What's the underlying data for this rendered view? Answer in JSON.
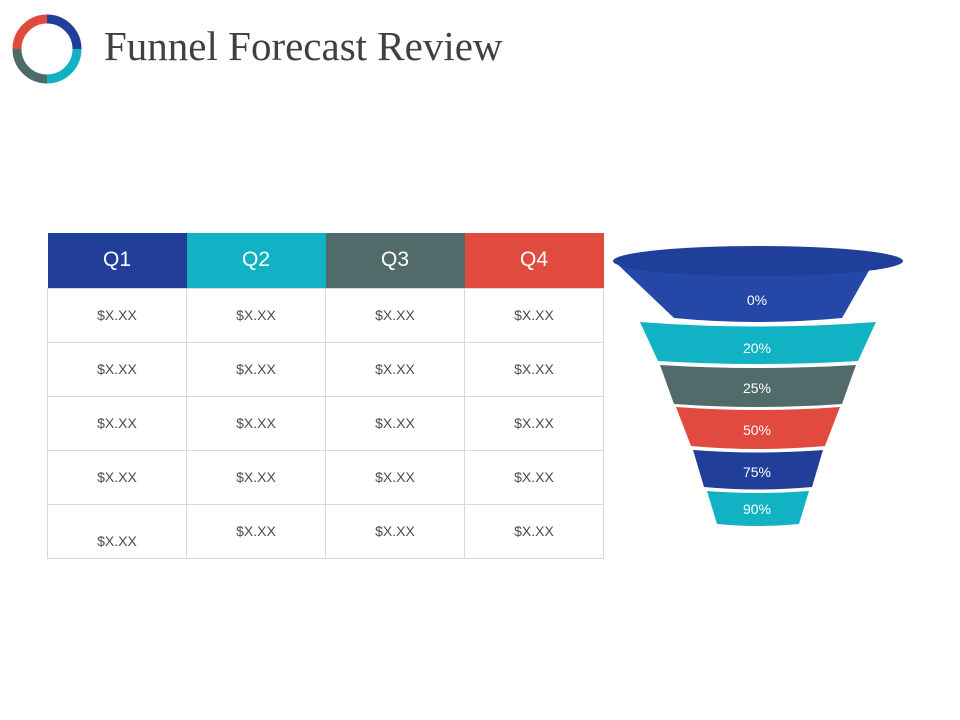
{
  "slide": {
    "title": "Funnel Forecast Review",
    "logo_icon": "donut-ring-icon",
    "logo_colors": [
      "#e04a3f",
      "#213f99",
      "#0fb1c2",
      "#4e6b6b"
    ]
  },
  "table": {
    "headers": [
      {
        "label": "Q1",
        "color": "#213f99"
      },
      {
        "label": "Q2",
        "color": "#10b2c4"
      },
      {
        "label": "Q3",
        "color": "#516b6b"
      },
      {
        "label": "Q4",
        "color": "#e04a3f"
      }
    ],
    "rows": [
      [
        "$X.XX",
        "$X.XX",
        "$X.XX",
        "$X.XX"
      ],
      [
        "$X.XX",
        "$X.XX",
        "$X.XX",
        "$X.XX"
      ],
      [
        "$X.XX",
        "$X.XX",
        "$X.XX",
        "$X.XX"
      ],
      [
        "$X.XX",
        "$X.XX",
        "$X.XX",
        "$X.XX"
      ],
      [
        "$X.XX",
        "$X.XX",
        "$X.XX",
        "$X.XX"
      ]
    ]
  },
  "funnel": {
    "stages": [
      {
        "label": "0%",
        "color": "#2447a8"
      },
      {
        "label": "20%",
        "color": "#10b2c4"
      },
      {
        "label": "25%",
        "color": "#516b6b"
      },
      {
        "label": "50%",
        "color": "#e04a3f"
      },
      {
        "label": "75%",
        "color": "#213f99"
      },
      {
        "label": "90%",
        "color": "#10b2c4"
      }
    ]
  }
}
